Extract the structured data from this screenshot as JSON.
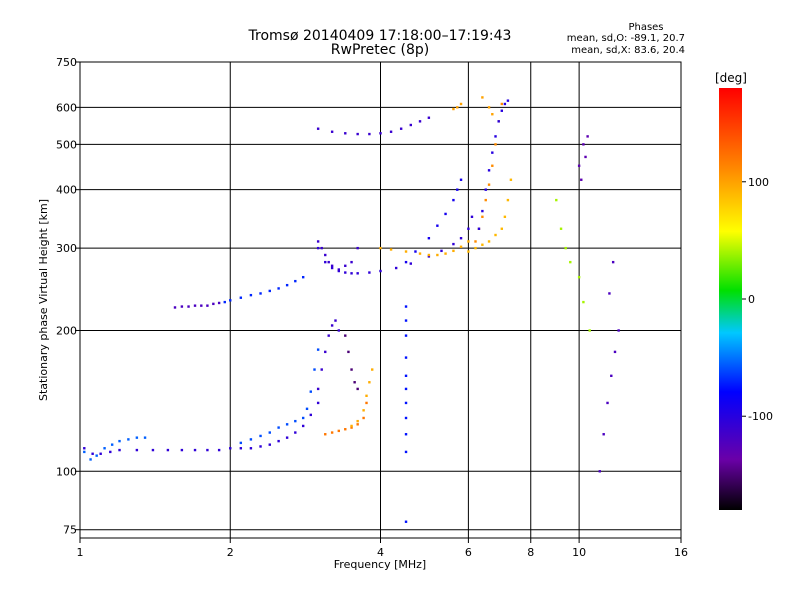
{
  "chart_data": {
    "type": "scatter",
    "title": "Tromsø 20140409 17:18:00–17:19:43",
    "subtitle": "RwPretec (8p)",
    "xlabel": "Frequency [MHz]",
    "ylabel": "Stationary phase Virtual Height [km]",
    "x_scale": "log",
    "y_scale": "log",
    "xlim": [
      1,
      16
    ],
    "ylim": [
      72,
      750
    ],
    "xticks": [
      1,
      2,
      4,
      6,
      8,
      10,
      16
    ],
    "xtick_labels": [
      "1",
      "2",
      "4",
      "6",
      "8",
      "10",
      "16"
    ],
    "yticks": [
      75,
      100,
      200,
      300,
      400,
      500,
      600,
      750
    ],
    "ytick_labels": [
      "75",
      "100",
      "200",
      "300",
      "400",
      "500",
      "600",
      "750"
    ],
    "grid": true,
    "stats": {
      "header": "Phases",
      "line1": "mean, sd,O: -89.1, 20.7",
      "line2": "mean, sd,X:  83.6, 20.4"
    },
    "colorbar": {
      "label": "[deg]",
      "range": [
        -180,
        180
      ],
      "ticks": [
        100,
        0,
        -100
      ],
      "tick_labels": [
        "100",
        "0",
        "-100"
      ]
    },
    "traces": [
      {
        "x": [
          1.02,
          1.06,
          1.1,
          1.15,
          1.2,
          1.3,
          1.4,
          1.5,
          1.6,
          1.7,
          1.8,
          1.9,
          2.0,
          2.1,
          2.2,
          2.3,
          2.4,
          2.5,
          2.6,
          2.7,
          2.8,
          2.9,
          3.0
        ],
        "y": [
          112,
          109,
          109,
          110,
          111,
          111,
          111,
          111,
          111,
          111,
          111,
          111,
          112,
          112,
          112,
          113,
          114,
          116,
          118,
          121,
          125,
          132,
          140
        ],
        "phase": -105
      },
      {
        "x": [
          1.02,
          1.05,
          1.08,
          1.12,
          1.16,
          1.2,
          1.25,
          1.3,
          1.35
        ],
        "y": [
          110,
          106,
          108,
          112,
          114,
          116,
          117,
          118,
          118
        ],
        "phase": -55
      },
      {
        "x": [
          2.1,
          2.2,
          2.3,
          2.4,
          2.5,
          2.6,
          2.7,
          2.8,
          2.85,
          2.9,
          2.95,
          3.0
        ],
        "y": [
          115,
          117,
          119,
          121,
          124,
          126,
          128,
          130,
          136,
          148,
          165,
          182
        ],
        "phase": -60
      },
      {
        "x": [
          3.0,
          3.05,
          3.1,
          3.15,
          3.2,
          3.25,
          3.3
        ],
        "y": [
          150,
          165,
          180,
          195,
          205,
          210,
          200
        ],
        "phase": -110
      },
      {
        "x": [
          3.1,
          3.2,
          3.3,
          3.4,
          3.5,
          3.6,
          3.7,
          3.75
        ],
        "y": [
          120,
          121,
          122,
          123,
          124,
          126,
          130,
          140
        ],
        "phase": 120
      },
      {
        "x": [
          3.5,
          3.6,
          3.7,
          3.75,
          3.8,
          3.85
        ],
        "y": [
          125,
          128,
          135,
          145,
          155,
          165
        ],
        "phase": 95
      },
      {
        "x": [
          3.4,
          3.45,
          3.5,
          3.55,
          3.6
        ],
        "y": [
          195,
          180,
          165,
          155,
          150
        ],
        "phase": -150
      },
      {
        "x": [
          1.55,
          1.6,
          1.65,
          1.7,
          1.75,
          1.8,
          1.85,
          1.9
        ],
        "y": [
          224,
          225,
          225,
          226,
          226,
          226,
          228,
          229
        ],
        "phase": -120
      },
      {
        "x": [
          1.95,
          2.0,
          2.1,
          2.2,
          2.3,
          2.4,
          2.5,
          2.6,
          2.7,
          2.8
        ],
        "y": [
          230,
          232,
          235,
          238,
          240,
          243,
          246,
          250,
          255,
          260
        ],
        "phase": -70
      },
      {
        "x": [
          3.0,
          3.1,
          3.2,
          3.3,
          3.4,
          3.5,
          3.6,
          3.8,
          4.0,
          4.3,
          4.6,
          5.0,
          5.3,
          5.6,
          5.8,
          6.0,
          6.1
        ],
        "y": [
          300,
          280,
          272,
          268,
          266,
          265,
          265,
          266,
          268,
          272,
          278,
          288,
          296,
          306,
          315,
          330,
          350
        ],
        "phase": -105
      },
      {
        "x": [
          3.0,
          3.05,
          3.1,
          3.15,
          3.2,
          3.3,
          3.4,
          3.5,
          3.6
        ],
        "y": [
          310,
          300,
          290,
          280,
          275,
          270,
          275,
          280,
          300
        ],
        "phase": -110
      },
      {
        "x": [
          4.0,
          4.2,
          4.5,
          4.8,
          5.0,
          5.2,
          5.4,
          5.6,
          5.8,
          6.0
        ],
        "y": [
          300,
          298,
          295,
          292,
          290,
          290,
          292,
          296,
          302,
          310
        ],
        "phase": 95
      },
      {
        "x": [
          4.5,
          4.7,
          5.0,
          5.2,
          5.4,
          5.6,
          5.7,
          5.8
        ],
        "y": [
          280,
          295,
          315,
          335,
          355,
          380,
          400,
          420
        ],
        "phase": -90
      },
      {
        "x": [
          3.0,
          3.2,
          3.4,
          3.6,
          3.8,
          4.0,
          4.2,
          4.4,
          4.6,
          4.8,
          5.0
        ],
        "y": [
          540,
          532,
          528,
          526,
          526,
          528,
          532,
          540,
          550,
          560,
          570
        ],
        "phase": -110
      },
      {
        "x": [
          6.2,
          6.3,
          6.4,
          6.5,
          6.6,
          6.7,
          6.8,
          6.9,
          7.0
        ],
        "y": [
          310,
          330,
          350,
          380,
          410,
          450,
          500,
          560,
          610
        ],
        "phase": 110
      },
      {
        "x": [
          6.0,
          6.2,
          6.4,
          6.6,
          6.8,
          7.0,
          7.1,
          7.2,
          7.3
        ],
        "y": [
          295,
          300,
          305,
          310,
          320,
          330,
          350,
          380,
          420
        ],
        "phase": 90
      },
      {
        "x": [
          6.3,
          6.4,
          6.5,
          6.6,
          6.7,
          6.8,
          6.9,
          7.0,
          7.1,
          7.2
        ],
        "y": [
          330,
          360,
          400,
          440,
          480,
          520,
          560,
          590,
          610,
          620
        ],
        "phase": -100
      },
      {
        "x": [
          5.6,
          5.7,
          5.8,
          6.4,
          6.6,
          6.7
        ],
        "y": [
          595,
          600,
          610,
          630,
          600,
          580
        ],
        "phase": 100
      },
      {
        "x": [
          4.5,
          4.5,
          4.5,
          4.5,
          4.5,
          4.5,
          4.5,
          4.5,
          4.5,
          4.5,
          4.5
        ],
        "y": [
          225,
          210,
          195,
          175,
          160,
          150,
          140,
          130,
          120,
          110,
          78
        ],
        "phase": -75
      },
      {
        "x": [
          11.0,
          11.2,
          11.4,
          11.6,
          11.8,
          12.0,
          11.5,
          11.7
        ],
        "y": [
          100,
          120,
          140,
          160,
          180,
          200,
          240,
          280
        ],
        "phase": -120
      },
      {
        "x": [
          9.0,
          9.2,
          9.4,
          9.6,
          10.0,
          10.2,
          10.5
        ],
        "y": [
          380,
          330,
          300,
          280,
          260,
          230,
          200
        ],
        "phase": 40
      },
      {
        "x": [
          10.0,
          10.1,
          10.2,
          10.3,
          10.4
        ],
        "y": [
          450,
          420,
          500,
          470,
          520
        ],
        "phase": -130
      }
    ]
  }
}
